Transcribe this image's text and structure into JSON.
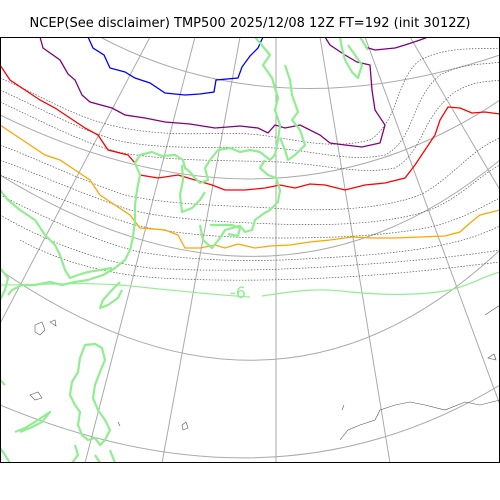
{
  "title": "NCEP(See disclaimer) TMP500 2025/12/08 12Z FT=192 (init 3012Z)",
  "colors": {
    "coastline": "#90ee90",
    "graticule": "#aaaaaa",
    "minor_isotherm": "#555555",
    "isotherm_blue": "#0000ff",
    "isotherm_purple": "#800080",
    "isotherm_red": "#ff0000",
    "isotherm_orange": "#ffa500",
    "isotherm_green": "#90ee90"
  },
  "contour_labels": [
    {
      "text": "-6",
      "color": "#90ee90"
    }
  ]
}
